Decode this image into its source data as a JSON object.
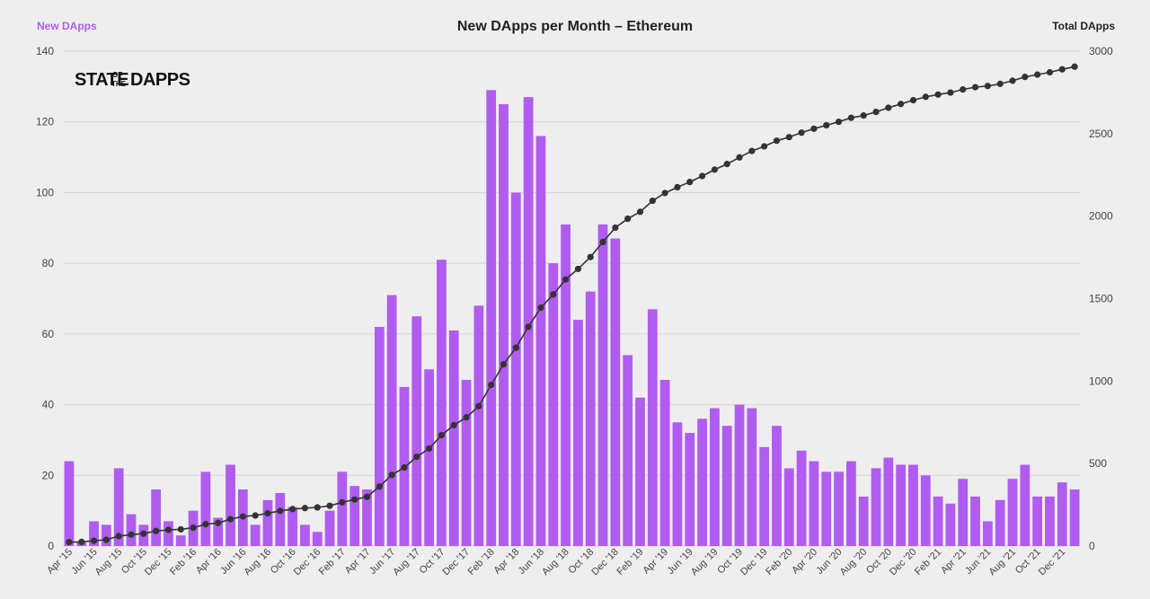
{
  "chart_data": {
    "type": "bar",
    "title": "New DApps per Month – Ethereum",
    "logo": {
      "line1": "STATE",
      "of": "OF",
      "the": "THE",
      "line2": "DAPPS"
    },
    "y_left": {
      "label": "New DApps",
      "range": [
        0,
        140
      ],
      "ticks": [
        0,
        20,
        40,
        60,
        80,
        100,
        120,
        140
      ]
    },
    "y_right": {
      "label": "Total DApps",
      "range": [
        0,
        3000
      ],
      "ticks": [
        0,
        500,
        1000,
        1500,
        2000,
        2500,
        3000
      ]
    },
    "grid": true,
    "colors": {
      "bars": "#b15cf0",
      "line": "#333333"
    },
    "x_tick_labels": [
      "Apr '15",
      "Jun '15",
      "Aug '15",
      "Oct '15",
      "Dec '15",
      "Feb '16",
      "Apr '16",
      "Jun '16",
      "Aug '16",
      "Oct '16",
      "Dec '16",
      "Feb '17",
      "Apr '17",
      "Jun '17",
      "Aug '17",
      "Oct '17",
      "Dec '17",
      "Feb '18",
      "Apr '18",
      "Jun '18",
      "Aug '18",
      "Oct '18",
      "Dec '18",
      "Feb '19",
      "Apr '19",
      "Jun '19",
      "Aug '19",
      "Oct '19",
      "Dec '19",
      "Feb '20",
      "Apr '20",
      "Jun '20",
      "Aug '20",
      "Oct '20",
      "Dec '20",
      "Feb '21",
      "Apr '21",
      "Jun '21",
      "Aug '21",
      "Oct '21",
      "Dec '21"
    ],
    "series": [
      {
        "axis": "left",
        "kind": "bar",
        "values": [
          24,
          1,
          7,
          6,
          22,
          9,
          6,
          16,
          7,
          3,
          10,
          21,
          8,
          23,
          16,
          6,
          13,
          15,
          11,
          6,
          4,
          10,
          21,
          17,
          16,
          62,
          71,
          45,
          65,
          50,
          81,
          61,
          47,
          68,
          129,
          125,
          100,
          127,
          116,
          80,
          91,
          64,
          72,
          91,
          87,
          54,
          42,
          67,
          47,
          35,
          32,
          36,
          39,
          34,
          40,
          39,
          28,
          34,
          22,
          27,
          24,
          21,
          21,
          24,
          14,
          22,
          25,
          23,
          23,
          20,
          14,
          12,
          19,
          14,
          7,
          13,
          19,
          23,
          14,
          14,
          18,
          16
        ]
      },
      {
        "axis": "right",
        "kind": "line",
        "values": [
          24,
          25,
          32,
          38,
          60,
          69,
          75,
          91,
          98,
          101,
          111,
          132,
          140,
          163,
          179,
          185,
          198,
          213,
          224,
          230,
          234,
          244,
          265,
          282,
          298,
          360,
          431,
          476,
          541,
          591,
          672,
          733,
          780,
          848,
          977,
          1102,
          1202,
          1329,
          1445,
          1525,
          1616,
          1680,
          1752,
          1843,
          1930,
          1984,
          2026,
          2093,
          2140,
          2175,
          2207,
          2243,
          2282,
          2316,
          2356,
          2395,
          2423,
          2457,
          2479,
          2506,
          2530,
          2551,
          2572,
          2596,
          2610,
          2632,
          2657,
          2680,
          2703,
          2723,
          2737,
          2749,
          2768,
          2782,
          2789,
          2802,
          2821,
          2844,
          2858,
          2872,
          2890,
          2906
        ]
      }
    ]
  }
}
